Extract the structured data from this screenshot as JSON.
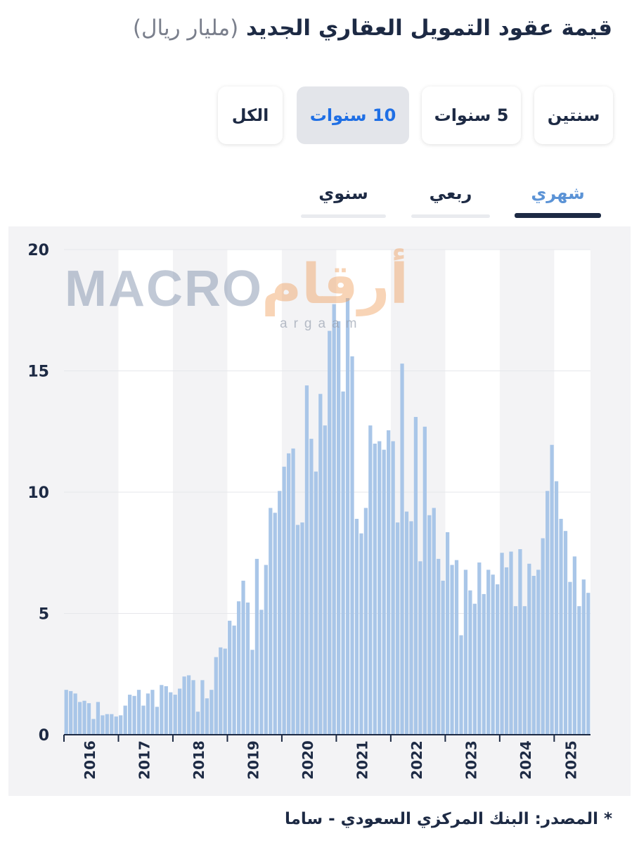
{
  "title": {
    "main": "قيمة عقود التمويل العقاري الجديد",
    "unit": "(مليار ريال)"
  },
  "range_buttons": [
    {
      "label": "سنتين",
      "active": false
    },
    {
      "label": "5 سنوات",
      "active": false
    },
    {
      "label": "10 سنوات",
      "active": true
    },
    {
      "label": "الكل",
      "active": false
    }
  ],
  "frequency_tabs": [
    {
      "label": "شهري",
      "active": true
    },
    {
      "label": "ربعي",
      "active": false
    },
    {
      "label": "سنوي",
      "active": false
    }
  ],
  "watermark": {
    "macro": "MACRO",
    "argaam": "أرقام",
    "argaam_sub": "argaam"
  },
  "source": "* المصدر: البنك المركزي السعودي - ساما",
  "colors": {
    "bar": "#a9c6e8",
    "band": "#f3f3f5",
    "axis": "#1d2a44",
    "text": "#1d2a44",
    "accent": "#1f6fe5"
  },
  "chart_data": {
    "type": "bar",
    "title": "قيمة عقود التمويل العقاري الجديد (مليار ريال)",
    "frequency": "monthly",
    "ylim": [
      0,
      20
    ],
    "yticks": [
      0,
      5,
      10,
      15,
      20
    ],
    "grid": true,
    "xlabels": [
      "2016",
      "2017",
      "2018",
      "2019",
      "2020",
      "2021",
      "2022",
      "2023",
      "2024",
      "2025"
    ],
    "start": "2016-01",
    "values": [
      1.85,
      1.8,
      1.7,
      1.35,
      1.4,
      1.3,
      0.65,
      1.35,
      0.8,
      0.85,
      0.85,
      0.75,
      0.8,
      1.2,
      1.65,
      1.6,
      1.85,
      1.2,
      1.7,
      1.85,
      1.15,
      2.05,
      2.0,
      1.75,
      1.65,
      1.9,
      2.4,
      2.45,
      2.25,
      0.95,
      2.25,
      1.5,
      1.85,
      3.2,
      3.6,
      3.55,
      4.7,
      4.5,
      5.5,
      6.35,
      5.45,
      3.5,
      7.25,
      5.15,
      7.0,
      9.35,
      9.15,
      10.05,
      11.05,
      11.6,
      11.8,
      8.65,
      8.75,
      14.4,
      12.2,
      10.85,
      14.05,
      12.75,
      16.65,
      17.75,
      17.05,
      14.15,
      18.0,
      15.6,
      8.9,
      8.3,
      9.35,
      12.75,
      12.0,
      12.1,
      11.75,
      12.55,
      12.1,
      8.75,
      15.3,
      9.2,
      8.8,
      13.1,
      7.15,
      12.7,
      9.05,
      9.35,
      7.25,
      6.35,
      8.35,
      7.0,
      7.2,
      4.1,
      6.8,
      5.95,
      5.4,
      7.1,
      5.8,
      6.8,
      6.6,
      6.2,
      7.5,
      6.9,
      7.55,
      5.3,
      7.65,
      5.3,
      7.05,
      6.55,
      6.8,
      8.1,
      10.05,
      11.95,
      10.45,
      8.9,
      8.4,
      6.3,
      7.35,
      5.3,
      6.4,
      5.85
    ]
  }
}
